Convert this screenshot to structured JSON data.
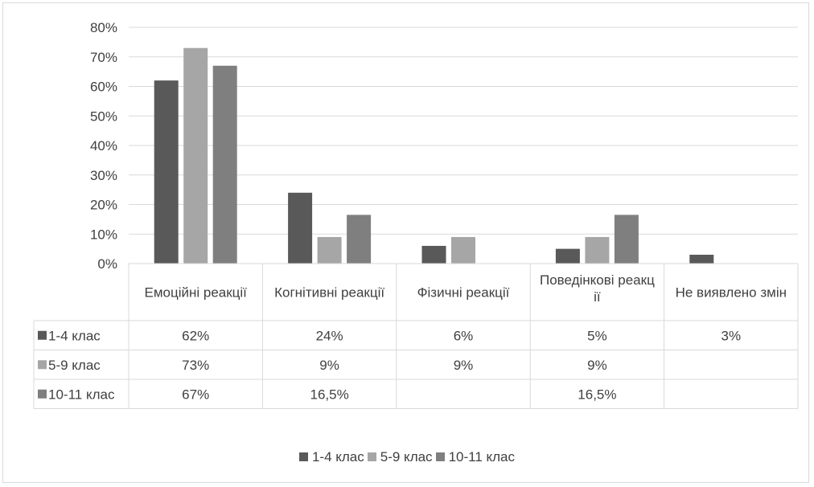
{
  "chart_data": {
    "type": "bar",
    "title": "",
    "xlabel": "",
    "ylabel": "",
    "ylim": [
      0,
      80
    ],
    "yticks": [
      "0%",
      "10%",
      "20%",
      "30%",
      "40%",
      "50%",
      "60%",
      "70%",
      "80%"
    ],
    "categories": [
      [
        "Емоційні реакції"
      ],
      [
        "Когнітивні реакції"
      ],
      [
        "Фізичні реакції"
      ],
      [
        "Поведінкові реакц",
        "ії"
      ],
      [
        "Не виявлено змін"
      ]
    ],
    "series": [
      {
        "name": "1-4 клас",
        "color": "#595959",
        "values": [
          62,
          24,
          6,
          5,
          3
        ],
        "labels": [
          "62%",
          "24%",
          "6%",
          "5%",
          "3%"
        ]
      },
      {
        "name": "5-9 клас",
        "color": "#a6a6a6",
        "values": [
          73,
          9,
          9,
          9,
          null
        ],
        "labels": [
          "73%",
          "9%",
          "9%",
          "9%",
          ""
        ]
      },
      {
        "name": "10-11 клас",
        "color": "#7f7f7f",
        "values": [
          67,
          16.5,
          null,
          16.5,
          null
        ],
        "labels": [
          "67%",
          "16,5%",
          "",
          "16,5%",
          ""
        ]
      }
    ],
    "grid": true,
    "legend": "bottom",
    "data_table": true
  }
}
